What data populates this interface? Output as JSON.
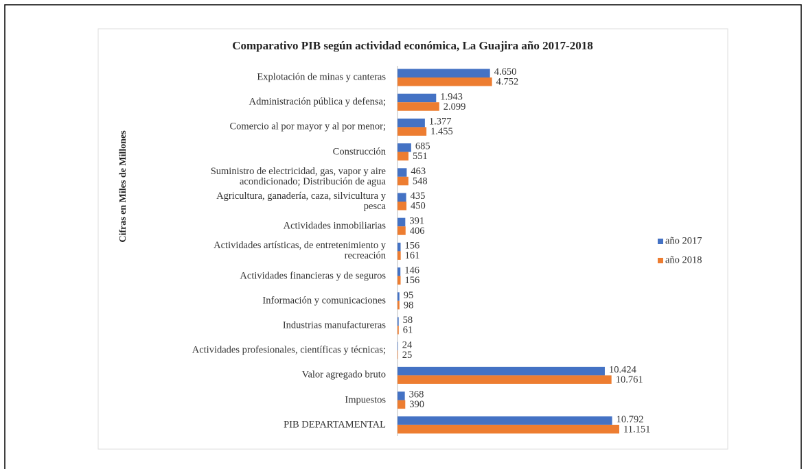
{
  "chart_data": {
    "type": "bar",
    "orientation": "horizontal",
    "title": "Comparativo PIB según actividad económica, La Guajira año 2017-2018",
    "y_label": "Cifras en Miles de Millones",
    "categories": [
      "Explotación de minas y canteras",
      "Administración pública y defensa;",
      "Comercio al por mayor y al por menor;",
      "Construcción",
      "Suministro de electricidad, gas, vapor y aire\nacondicionado; Distribución de agua",
      "Agricultura, ganadería, caza, silvicultura y\npesca",
      "Actividades inmobiliarias",
      "Actividades artísticas, de entretenimiento y\nrecreación",
      "Actividades financieras y de seguros",
      "Información y comunicaciones",
      "Industrias manufactureras",
      "Actividades profesionales, científicas y técnicas;",
      "Valor agregado bruto",
      "Impuestos",
      "PIB DEPARTAMENTAL"
    ],
    "series": [
      {
        "name": "año 2017",
        "color": "#4472c4",
        "values": [
          4650,
          1943,
          1377,
          685,
          463,
          435,
          391,
          156,
          146,
          95,
          58,
          24,
          10424,
          368,
          10792
        ],
        "value_labels": [
          "4.650",
          "1.943",
          "1.377",
          "685",
          "463",
          "435",
          "391",
          "156",
          "146",
          "95",
          "58",
          "24",
          "10.424",
          "368",
          "10.792"
        ]
      },
      {
        "name": "año 2018",
        "color": "#ed7d31",
        "values": [
          4752,
          2099,
          1455,
          551,
          548,
          450,
          406,
          161,
          156,
          98,
          61,
          25,
          10761,
          390,
          11151
        ],
        "value_labels": [
          "4.752",
          "2.099",
          "1.455",
          "551",
          "548",
          "450",
          "406",
          "161",
          "156",
          "98",
          "61",
          "25",
          "10.761",
          "390",
          "11.151"
        ]
      }
    ],
    "legend": "right"
  }
}
